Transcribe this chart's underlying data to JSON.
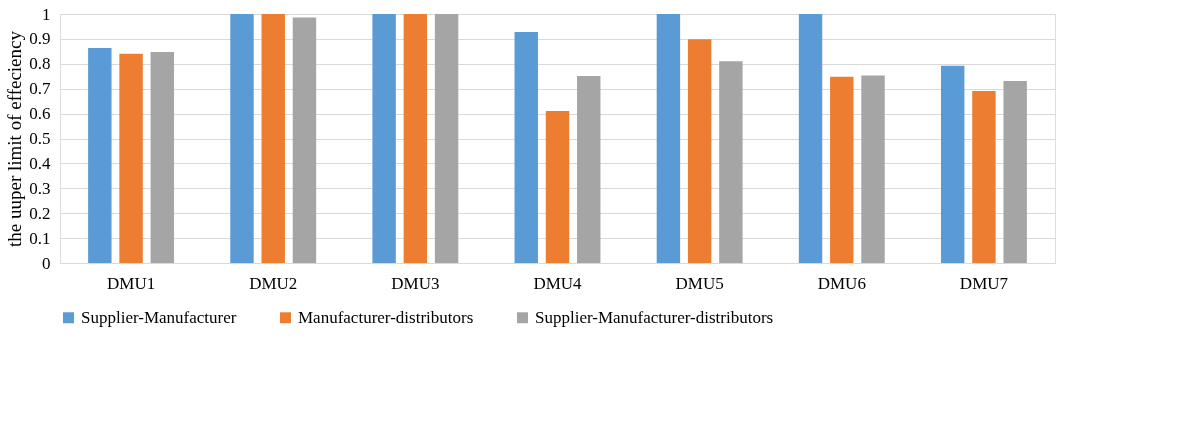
{
  "chart_data": {
    "type": "bar",
    "ylabel": "the uuper limit of effeciency",
    "categories": [
      "DMU1",
      "DMU2",
      "DMU3",
      "DMU4",
      "DMU5",
      "DMU6",
      "DMU7"
    ],
    "series": [
      {
        "name": "Supplier-Manufacturer",
        "color": "#5b9bd5",
        "values": [
          0.863,
          1,
          1,
          0.928,
          1,
          1,
          0.792
        ]
      },
      {
        "name": "Manufacturer-distributors",
        "color": "#ed7d31",
        "values": [
          0.84,
          1,
          1,
          0.61,
          0.899,
          0.748,
          0.691
        ]
      },
      {
        "name": "Supplier-Manufacturer-distributors",
        "color": "#a5a5a5",
        "values": [
          0.847,
          0.986,
          1,
          0.751,
          0.81,
          0.753,
          0.731
        ]
      }
    ],
    "ylim": [
      0,
      1
    ],
    "yticks": [
      0,
      0.1,
      0.2,
      0.3,
      0.4,
      0.5,
      0.6,
      0.7,
      0.8,
      0.9,
      1
    ],
    "grid": "y",
    "legend": "bottom"
  }
}
